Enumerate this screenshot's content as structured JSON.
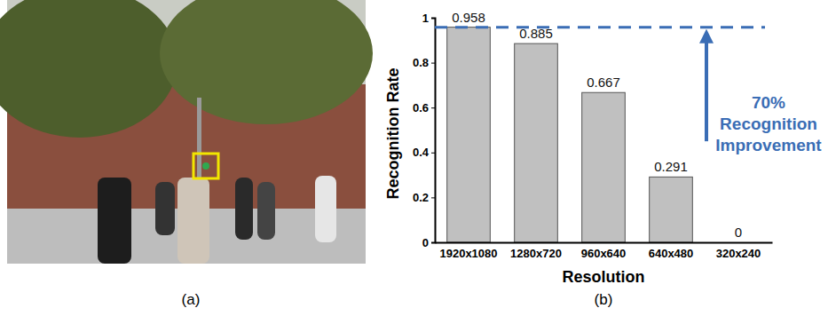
{
  "figure": {
    "panel_labels": [
      "(a)",
      "(b)"
    ]
  },
  "chart_data": {
    "type": "bar",
    "x_label": "Resolution",
    "y_label": "Recognition Rate",
    "categories": [
      "1920x1080",
      "1280x720",
      "960x640",
      "640x480",
      "320x240"
    ],
    "values": [
      0.958,
      0.885,
      0.667,
      0.291,
      0
    ],
    "color": "#c0c0c0",
    "data_labels": true,
    "ylim": [
      0,
      1
    ],
    "yticks": [
      0,
      0.2,
      0.4,
      0.6,
      0.8,
      1
    ],
    "grid": false,
    "annotation": {
      "lines": [
        "70%",
        "Recognition",
        "Improvement"
      ],
      "y": 0.958,
      "arrow": [
        0.45,
        0.958
      ],
      "color": "#3a6db5",
      "line_style": "dashed"
    }
  }
}
